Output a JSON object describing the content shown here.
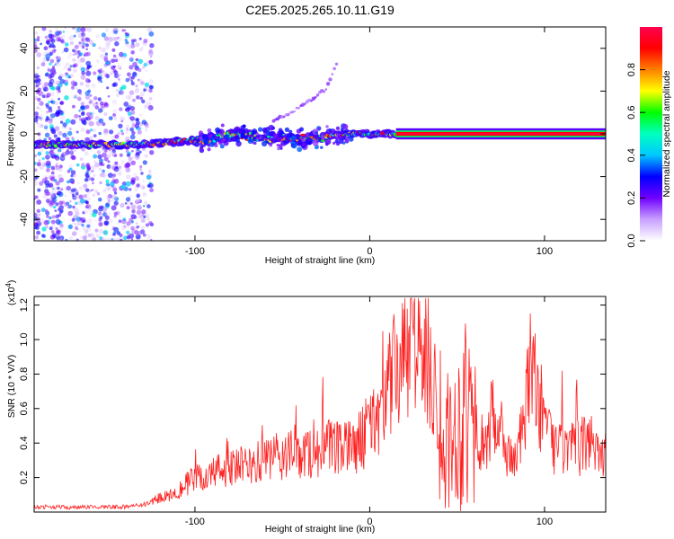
{
  "chart_data": [
    {
      "type": "heatmap",
      "title": "C2E5.2025.265.10.11.G19",
      "xlabel": "Height of straight line (km)",
      "ylabel": "Frequency (Hz)",
      "xlim": [
        -192,
        135
      ],
      "ylim": [
        -50,
        50
      ],
      "xticks": [
        -100,
        0,
        100
      ],
      "xtick_labels": [
        "-100",
        "0",
        "100"
      ],
      "yticks": [
        -40,
        -20,
        0,
        20,
        40
      ],
      "ytick_labels": [
        "-40",
        "-20",
        "0",
        "20",
        "40"
      ],
      "ridge": {
        "x": [
          -192,
          -170,
          -150,
          -130,
          -115,
          -100,
          -92,
          -85,
          -78,
          -70,
          -60,
          -50,
          -44,
          -38,
          -30,
          -20,
          -10,
          0,
          10,
          15,
          135
        ],
        "y": [
          -5,
          -5,
          -5,
          -5,
          -4,
          -3,
          -3,
          -1,
          0,
          -1,
          -2,
          -2,
          -3,
          -2,
          -2,
          -1,
          0,
          0,
          0,
          0,
          0
        ]
      },
      "tone_start_km": 15,
      "tone_end_km": 135,
      "harmonic": {
        "x": [
          -55,
          -45,
          -35,
          -25,
          -18
        ],
        "y": [
          6,
          10,
          15,
          21,
          35
        ]
      },
      "noise_region_km": [
        -192,
        -125
      ],
      "colorbar": {
        "label": "Normalized spectral amplitude",
        "range": [
          0,
          1
        ],
        "ticks": [
          0,
          0.2,
          0.4,
          0.6,
          0.8
        ],
        "tick_labels": [
          "0.0",
          "0.2",
          "0.4",
          "0.6",
          "0.8"
        ],
        "colormap": [
          "#ffffff",
          "#c8a0ff",
          "#7000ff",
          "#0000ff",
          "#00c8ff",
          "#00ffc0",
          "#00ff00",
          "#ffff00",
          "#ff8000",
          "#ff0000",
          "#ff0050"
        ]
      }
    },
    {
      "type": "line",
      "xlabel": "Height of straight line (km)",
      "ylabel": "SNR (10 * V/V)",
      "yscale_label": "(x10",
      "yscale_exp": "4",
      "yscale_close": ")",
      "xlim": [
        -192,
        135
      ],
      "ylim": [
        0,
        1.25
      ],
      "xticks": [
        -100,
        0,
        100
      ],
      "xtick_labels": [
        "-100",
        "0",
        "100"
      ],
      "yticks": [
        0.2,
        0.4,
        0.6,
        0.8,
        1.0,
        1.2
      ],
      "ytick_labels": [
        "0.2",
        "0.4",
        "0.6",
        "0.8",
        "1.0",
        "1.2"
      ],
      "series": [
        {
          "name": "SNR",
          "color": "#ff2020",
          "x": [
            -192,
            -180,
            -170,
            -160,
            -150,
            -140,
            -130,
            -125,
            -120,
            -115,
            -110,
            -105,
            -100,
            -95,
            -90,
            -85,
            -80,
            -75,
            -70,
            -65,
            -60,
            -55,
            -50,
            -45,
            -40,
            -35,
            -30,
            -25,
            -20,
            -15,
            -10,
            -5,
            0,
            5,
            10,
            15,
            18,
            22,
            25,
            28,
            30,
            33,
            36,
            40,
            44,
            48,
            52,
            55,
            58,
            62,
            66,
            70,
            74,
            78,
            82,
            86,
            90,
            93,
            96,
            100,
            104,
            108,
            112,
            116,
            120,
            124,
            128,
            132,
            135
          ],
          "y": [
            0.03,
            0.03,
            0.025,
            0.03,
            0.03,
            0.03,
            0.04,
            0.06,
            0.08,
            0.1,
            0.13,
            0.16,
            0.19,
            0.2,
            0.22,
            0.25,
            0.25,
            0.26,
            0.27,
            0.28,
            0.3,
            0.3,
            0.32,
            0.33,
            0.33,
            0.34,
            0.35,
            0.38,
            0.36,
            0.36,
            0.38,
            0.42,
            0.48,
            0.58,
            0.7,
            0.82,
            0.85,
            0.9,
            0.95,
            0.97,
            0.95,
            0.88,
            0.75,
            0.55,
            0.4,
            0.46,
            0.5,
            0.62,
            0.55,
            0.45,
            0.35,
            0.55,
            0.45,
            0.36,
            0.3,
            0.4,
            0.65,
            0.9,
            0.7,
            0.5,
            0.4,
            0.38,
            0.35,
            0.36,
            0.37,
            0.4,
            0.42,
            0.36,
            0.33
          ]
        }
      ]
    }
  ]
}
